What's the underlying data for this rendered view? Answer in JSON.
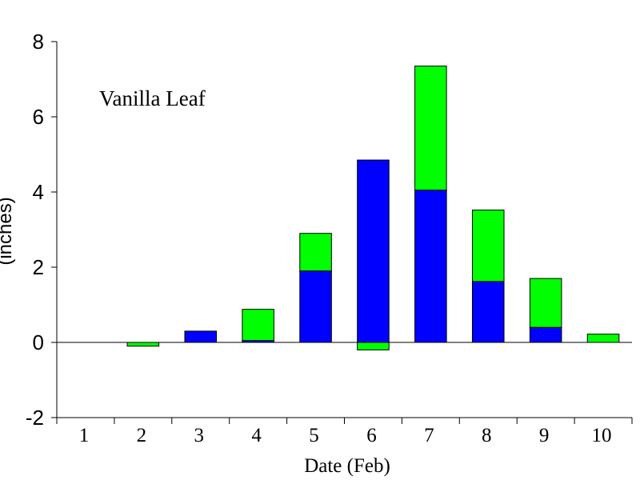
{
  "chart_data": {
    "type": "bar",
    "stacked": true,
    "title": "",
    "annotation": "Vanilla Leaf",
    "xlabel": "Date (Feb)",
    "ylabel": "(inches)",
    "categories": [
      "1",
      "2",
      "3",
      "4",
      "5",
      "6",
      "7",
      "8",
      "9",
      "10"
    ],
    "ylim": [
      -2,
      8
    ],
    "yticks": [
      -2,
      0,
      2,
      4,
      6,
      8
    ],
    "grid": false,
    "series": [
      {
        "values": [
          0,
          0,
          0.3,
          0.05,
          1.9,
          4.85,
          4.05,
          1.62,
          0.4,
          0
        ],
        "color": "#0000ff"
      },
      {
        "values": [
          0,
          -0.1,
          0,
          0.83,
          1.0,
          -0.2,
          3.3,
          1.9,
          1.3,
          0.22
        ],
        "color": "#00ff00"
      }
    ]
  }
}
